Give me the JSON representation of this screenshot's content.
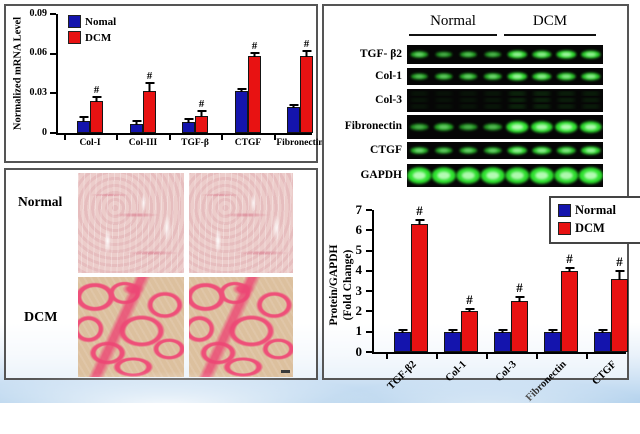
{
  "colors": {
    "normal_bar": "#1414ad",
    "dcm_bar": "#e81212",
    "blot_green": "#2ee22e",
    "tissue_normal": "#ecccca",
    "tissue_normal_line": "#dd8e9c",
    "tissue_dcm": "#dcc09e",
    "tissue_stain": "#ee5079"
  },
  "mrna_panel": {
    "ylabel": "Normalized mRNA Level"
  },
  "histology_panel": {
    "row_labels": [
      "Normal",
      "DCM"
    ]
  },
  "blot_panel": {
    "group_labels": [
      "Normal",
      "DCM"
    ],
    "rows": [
      {
        "label": "TGF- β2",
        "type": "sharp",
        "lanes": [
          0.55,
          0.35,
          0.45,
          0.4,
          0.85,
          0.8,
          0.92,
          0.85
        ]
      },
      {
        "label": "Col-1",
        "type": "sharp",
        "lanes": [
          0.45,
          0.5,
          0.55,
          0.6,
          0.9,
          0.8,
          0.75,
          0.8
        ]
      },
      {
        "label": "Col-3",
        "type": "smear",
        "lanes": [
          0.3,
          0.25,
          0.3,
          0.35,
          0.62,
          0.6,
          0.5,
          0.45
        ]
      },
      {
        "label": "Fibronectin",
        "type": "thick",
        "lanes": [
          0.35,
          0.5,
          0.35,
          0.4,
          1.0,
          0.95,
          1.0,
          0.95
        ]
      },
      {
        "label": "CTGF",
        "type": "sharp",
        "lanes": [
          0.6,
          0.5,
          0.55,
          0.55,
          0.85,
          0.8,
          0.75,
          0.9
        ]
      },
      {
        "label": "GAPDH",
        "type": "blob",
        "lanes": [
          1.0,
          1.0,
          0.95,
          1.0,
          0.95,
          1.0,
          0.95,
          1.0
        ]
      }
    ]
  },
  "protein_panel": {
    "ylabel_line1": "Protein/GAPDH",
    "ylabel_line2": "(Fold Change)"
  },
  "chart_data": [
    {
      "type": "bar",
      "title": "",
      "ylabel": "Normalized mRNA Level",
      "xlabel": "",
      "categories": [
        "Col-I",
        "Col-III",
        "TGF-β",
        "CTGF",
        "Fibronectin"
      ],
      "series": [
        {
          "name": "Nomal",
          "color_key": "normal_bar",
          "values": [
            0.009,
            0.007,
            0.008,
            0.032,
            0.02
          ],
          "errors": [
            0.003,
            0.002,
            0.002,
            0.001,
            0.0015
          ]
        },
        {
          "name": "DCM",
          "color_key": "dcm_bar",
          "values": [
            0.024,
            0.032,
            0.013,
            0.058,
            0.058
          ],
          "errors": [
            0.003,
            0.006,
            0.0035,
            0.002,
            0.004
          ],
          "sig": [
            "#",
            "#",
            "#",
            "#",
            "#"
          ]
        }
      ],
      "ylim": [
        0,
        0.09
      ],
      "yticks": [
        0,
        0.03,
        0.06,
        0.09
      ],
      "ytick_labels": [
        "0",
        "0.03",
        "0.06",
        "0.09"
      ],
      "legend_position": "top-left",
      "grid": false
    },
    {
      "type": "bar",
      "title": "",
      "ylabel": "Protein/GAPDH (Fold Change)",
      "xlabel": "",
      "categories": [
        "TGF-β2",
        "Col-1",
        "Col-3",
        "Fibronectin",
        "CTGF"
      ],
      "series": [
        {
          "name": "Normal",
          "color_key": "normal_bar",
          "values": [
            1.0,
            1.0,
            1.0,
            1.0,
            1.0
          ],
          "errors": [
            0.12,
            0.12,
            0.1,
            0.08,
            0.12
          ]
        },
        {
          "name": "DCM",
          "color_key": "dcm_bar",
          "values": [
            6.3,
            2.0,
            2.5,
            4.0,
            3.6
          ],
          "errors": [
            0.2,
            0.12,
            0.2,
            0.15,
            0.4
          ],
          "sig": [
            "#",
            "#",
            "#",
            "#",
            "#"
          ]
        }
      ],
      "ylim": [
        0,
        7
      ],
      "yticks": [
        0,
        1,
        2,
        3,
        4,
        5,
        6,
        7
      ],
      "ytick_labels": [
        "0",
        "1",
        "2",
        "3",
        "4",
        "5",
        "6",
        "7"
      ],
      "legend_position": "top-right",
      "grid": false
    }
  ]
}
